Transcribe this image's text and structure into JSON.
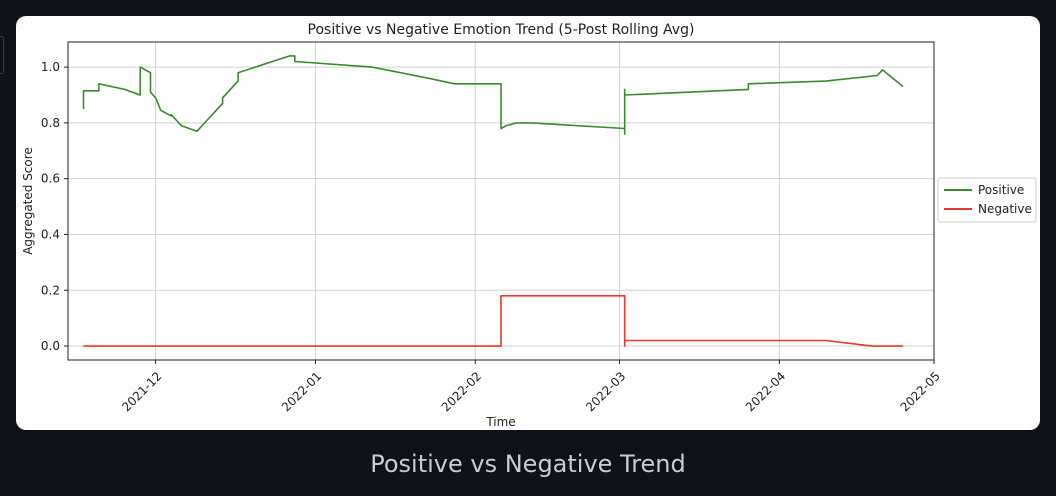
{
  "caption": "Positive vs Negative Trend",
  "chart_data": {
    "type": "line",
    "title": "Positive vs Negative Emotion Trend (5-Post Rolling Avg)",
    "xlabel": "Time",
    "ylabel": "Aggregated Score",
    "ylim": [
      -0.05,
      1.09
    ],
    "xlim": [
      "2021-11-14",
      "2022-05-01"
    ],
    "x_ticks": [
      "2021-12",
      "2022-01",
      "2022-02",
      "2022-03",
      "2022-04",
      "2022-05"
    ],
    "y_ticks": [
      "0.0",
      "0.2",
      "0.4",
      "0.6",
      "0.8",
      "1.0"
    ],
    "grid": true,
    "legend_position": "center-right-outside",
    "series": [
      {
        "name": "Positive",
        "color": "#3a8a2e",
        "points": [
          [
            "2021-11-17",
            0.85
          ],
          [
            "2021-11-17",
            0.915
          ],
          [
            "2021-11-20",
            0.915
          ],
          [
            "2021-11-20",
            0.94
          ],
          [
            "2021-11-25",
            0.92
          ],
          [
            "2021-11-28",
            0.9
          ],
          [
            "2021-11-28",
            1.0
          ],
          [
            "2021-11-30",
            0.98
          ],
          [
            "2021-11-30",
            0.91
          ],
          [
            "2021-12-01",
            0.89
          ],
          [
            "2021-12-02",
            0.845
          ],
          [
            "2021-12-04",
            0.825
          ],
          [
            "2021-12-04",
            0.83
          ],
          [
            "2021-12-06",
            0.79
          ],
          [
            "2021-12-09",
            0.77
          ],
          [
            "2021-12-14",
            0.87
          ],
          [
            "2021-12-14",
            0.89
          ],
          [
            "2021-12-17",
            0.95
          ],
          [
            "2021-12-17",
            0.98
          ],
          [
            "2021-12-27",
            1.04
          ],
          [
            "2021-12-28",
            1.04
          ],
          [
            "2021-12-28",
            1.02
          ],
          [
            "2022-01-12",
            1.0
          ],
          [
            "2022-01-23",
            0.96
          ],
          [
            "2022-01-28",
            0.94
          ],
          [
            "2022-02-06",
            0.94
          ],
          [
            "2022-02-06",
            0.78
          ],
          [
            "2022-02-07",
            0.79
          ],
          [
            "2022-02-09",
            0.8
          ],
          [
            "2022-02-12",
            0.8
          ],
          [
            "2022-03-02",
            0.78
          ],
          [
            "2022-03-02",
            0.92
          ],
          [
            "2022-03-02",
            0.76
          ],
          [
            "2022-03-02",
            0.9
          ],
          [
            "2022-03-26",
            0.92
          ],
          [
            "2022-03-26",
            0.94
          ],
          [
            "2022-04-10",
            0.95
          ],
          [
            "2022-04-20",
            0.97
          ],
          [
            "2022-04-21",
            0.99
          ],
          [
            "2022-04-25",
            0.93
          ]
        ]
      },
      {
        "name": "Negative",
        "color": "#e8382c",
        "points": [
          [
            "2021-11-17",
            0.0
          ],
          [
            "2022-02-06",
            0.0
          ],
          [
            "2022-02-06",
            0.18
          ],
          [
            "2022-03-02",
            0.18
          ],
          [
            "2022-03-02",
            0.0
          ],
          [
            "2022-03-02",
            0.02
          ],
          [
            "2022-04-10",
            0.02
          ],
          [
            "2022-04-19",
            0.0
          ],
          [
            "2022-04-25",
            0.0
          ]
        ]
      }
    ]
  }
}
